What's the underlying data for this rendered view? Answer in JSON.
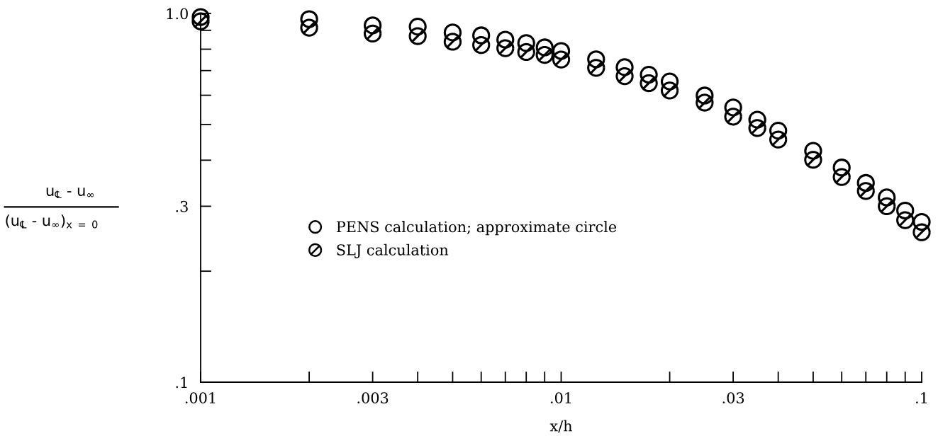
{
  "chart_data": {
    "type": "scatter",
    "xlabel": "x/h",
    "ylabel": "u$_{℄}$ - u$_{∞}$\n(u$_{℄}$ - u$_{∞}$)$_{x = 0}$",
    "log": "xy",
    "grid": false,
    "legend": "bottom left",
    "xlim": [
      0.001,
      0.1
    ],
    "ylim": [
      0.1,
      1.0
    ],
    "xticks": [
      {
        "value": 0.001,
        "label": ".001"
      },
      {
        "value": 0.002,
        "label": null
      },
      {
        "value": 0.003,
        "label": ".003"
      },
      {
        "value": 0.004,
        "label": null
      },
      {
        "value": 0.005,
        "label": null
      },
      {
        "value": 0.006,
        "label": null
      },
      {
        "value": 0.007,
        "label": null
      },
      {
        "value": 0.008,
        "label": null
      },
      {
        "value": 0.009,
        "label": null
      },
      {
        "value": 0.01,
        "label": ".01"
      },
      {
        "value": 0.02,
        "label": null
      },
      {
        "value": 0.03,
        "label": ".03"
      },
      {
        "value": 0.04,
        "label": null
      },
      {
        "value": 0.05,
        "label": null
      },
      {
        "value": 0.06,
        "label": null
      },
      {
        "value": 0.07,
        "label": null
      },
      {
        "value": 0.08,
        "label": null
      },
      {
        "value": 0.09,
        "label": null
      },
      {
        "value": 0.1,
        "label": ".1"
      }
    ],
    "yticks": [
      {
        "value": 0.1,
        "label": ".1"
      },
      {
        "value": 0.2,
        "label": null
      },
      {
        "value": 0.3,
        "label": ".3"
      },
      {
        "value": 0.4,
        "label": null
      },
      {
        "value": 0.5,
        "label": null
      },
      {
        "value": 0.6,
        "label": null
      },
      {
        "value": 0.7,
        "label": null
      },
      {
        "value": 0.8,
        "label": null
      },
      {
        "value": 0.9,
        "label": null
      },
      {
        "value": 1.0,
        "label": "1.0"
      }
    ],
    "x": [
      0.001,
      0.002,
      0.003,
      0.004,
      0.005,
      0.006,
      0.007,
      0.008,
      0.009,
      0.01,
      0.0125,
      0.015,
      0.0175,
      0.02,
      0.025,
      0.03,
      0.035,
      0.04,
      0.05,
      0.06,
      0.07,
      0.08,
      0.09,
      0.1
    ],
    "series": [
      {
        "name": "PENS calculation; approximate circle",
        "color": "#000000",
        "marker": "circle",
        "values": [
          0.978,
          0.965,
          0.928,
          0.921,
          0.888,
          0.872,
          0.849,
          0.831,
          0.809,
          0.791,
          0.751,
          0.715,
          0.682,
          0.654,
          0.599,
          0.556,
          0.515,
          0.481,
          0.424,
          0.382,
          0.347,
          0.317,
          0.292,
          0.272
        ]
      },
      {
        "name": "SLJ calculation",
        "color": "#000000",
        "values": [
          0.952,
          0.915,
          0.882,
          0.868,
          0.838,
          0.821,
          0.805,
          0.786,
          0.772,
          0.75,
          0.712,
          0.676,
          0.647,
          0.618,
          0.573,
          0.525,
          0.489,
          0.455,
          0.401,
          0.36,
          0.33,
          0.3,
          0.275,
          0.255
        ]
      }
    ]
  }
}
